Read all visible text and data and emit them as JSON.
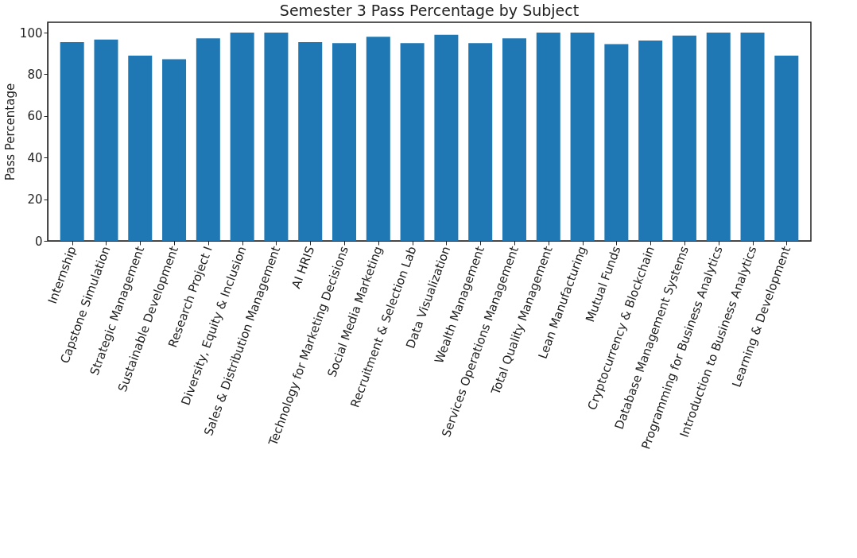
{
  "chart_data": {
    "type": "bar",
    "title": "Semester 3 Pass Percentage by Subject",
    "ylabel": "Pass Percentage",
    "categories": [
      "Internship",
      "Capstone Simulation",
      "Strategic Management",
      "Sustainable Development",
      "Research Project I",
      "Diversity, Equity & Inclusion",
      "Sales & Distribution Management",
      "AI HRIS",
      "Technology for Marketing Decisions",
      "Social Media Marketing",
      "Recruitment & Selection Lab",
      "Data Visualization",
      "Wealth Management",
      "Services Operations Management",
      "Total Quality Management",
      "Lean Manufacturing",
      "Mutual Funds",
      "Cryptocurrency & Blockchain",
      "Database Management Systems",
      "Programming for Business Analytics",
      "Introduction to Business Analytics",
      "Learning & Development"
    ],
    "values": [
      95.5,
      96.7,
      89.0,
      87.2,
      97.3,
      100,
      100,
      95.5,
      95.0,
      98.0,
      95.0,
      99.0,
      95.0,
      97.3,
      100,
      100,
      94.5,
      96.2,
      98.6,
      100,
      100,
      89.0
    ],
    "color": "#1f77b4",
    "ylim": [
      0,
      105
    ],
    "yticks": [
      0,
      20,
      40,
      60,
      80,
      100
    ],
    "grid": false
  }
}
